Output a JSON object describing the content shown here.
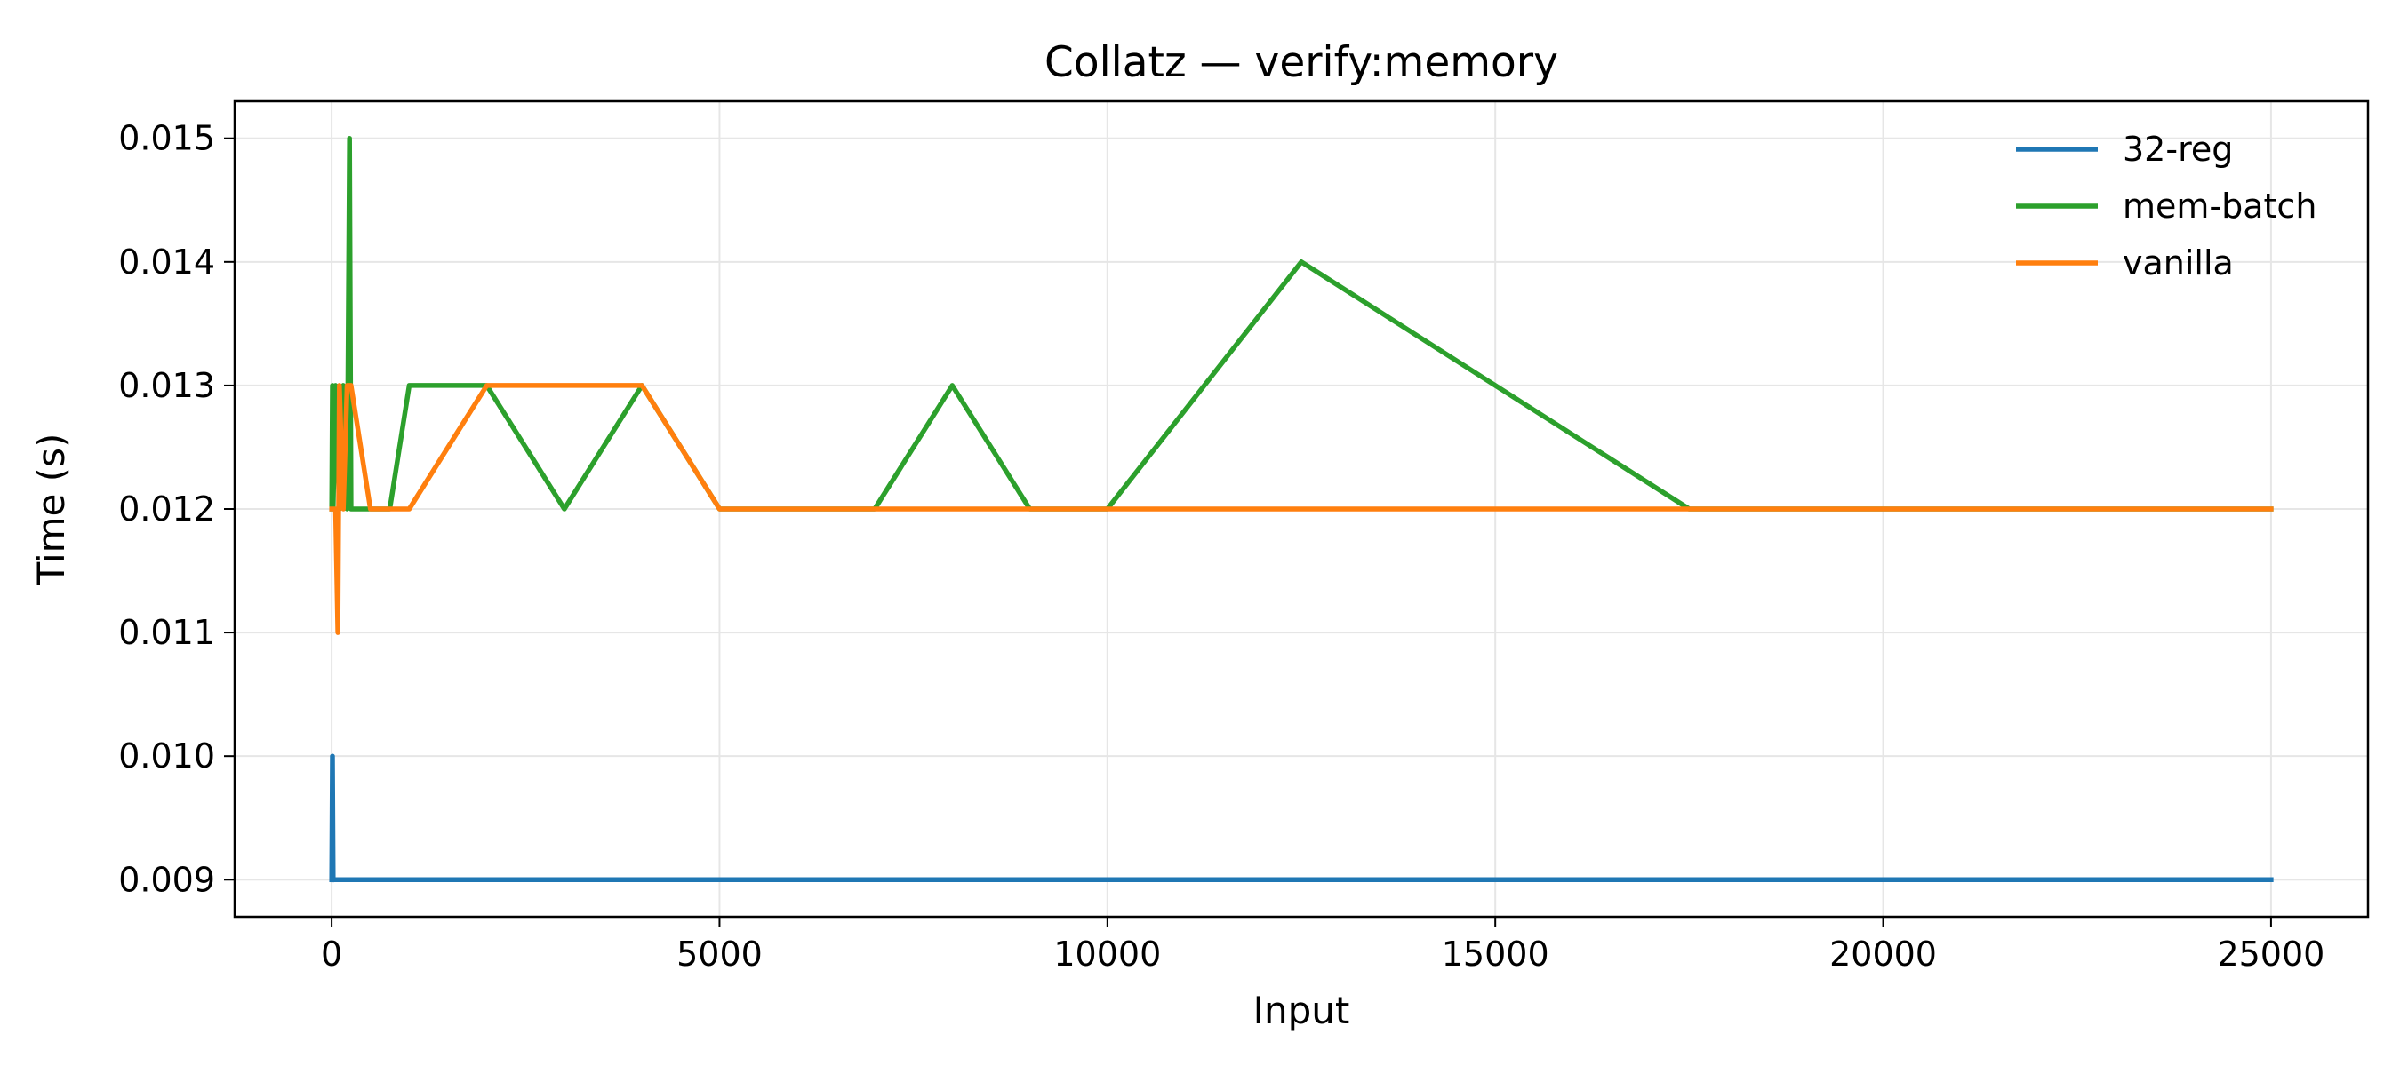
{
  "chart_data": {
    "type": "line",
    "title": "Collatz — verify:memory",
    "xlabel": "Input",
    "ylabel": "Time (s)",
    "xlim": [
      -1250,
      26250
    ],
    "ylim": [
      0.0087,
      0.0153
    ],
    "xticks": [
      0,
      5000,
      10000,
      15000,
      20000,
      25000
    ],
    "xtick_labels": [
      "0",
      "5000",
      "10000",
      "15000",
      "20000",
      "25000"
    ],
    "yticks": [
      0.009,
      0.01,
      0.011,
      0.012,
      0.013,
      0.014,
      0.015
    ],
    "ytick_labels": [
      "0.009",
      "0.010",
      "0.011",
      "0.012",
      "0.013",
      "0.014",
      "0.015"
    ],
    "grid": true,
    "legend_position": "top-right",
    "series": [
      {
        "name": "32-reg",
        "color": "#1f77b4",
        "points": [
          [
            1,
            0.009
          ],
          [
            10,
            0.01
          ],
          [
            20,
            0.009
          ],
          [
            50,
            0.009
          ],
          [
            100,
            0.009
          ],
          [
            200,
            0.009
          ],
          [
            500,
            0.009
          ],
          [
            1000,
            0.009
          ],
          [
            2000,
            0.009
          ],
          [
            5000,
            0.009
          ],
          [
            10000,
            0.009
          ],
          [
            25000,
            0.009
          ]
        ]
      },
      {
        "name": "mem-batch",
        "color": "#2ca02c",
        "points": [
          [
            1,
            0.012
          ],
          [
            10,
            0.013
          ],
          [
            20,
            0.012
          ],
          [
            50,
            0.013
          ],
          [
            100,
            0.012
          ],
          [
            150,
            0.013
          ],
          [
            200,
            0.012
          ],
          [
            230,
            0.015
          ],
          [
            250,
            0.012
          ],
          [
            500,
            0.012
          ],
          [
            750,
            0.012
          ],
          [
            1000,
            0.013
          ],
          [
            2000,
            0.013
          ],
          [
            3000,
            0.012
          ],
          [
            4000,
            0.013
          ],
          [
            5000,
            0.012
          ],
          [
            7000,
            0.012
          ],
          [
            8000,
            0.013
          ],
          [
            9000,
            0.012
          ],
          [
            10000,
            0.012
          ],
          [
            12500,
            0.014
          ],
          [
            17500,
            0.012
          ],
          [
            25000,
            0.012
          ]
        ]
      },
      {
        "name": "vanilla",
        "color": "#ff7f0e",
        "points": [
          [
            1,
            0.012
          ],
          [
            50,
            0.012
          ],
          [
            80,
            0.011
          ],
          [
            100,
            0.013
          ],
          [
            150,
            0.012
          ],
          [
            200,
            0.013
          ],
          [
            250,
            0.013
          ],
          [
            500,
            0.012
          ],
          [
            1000,
            0.012
          ],
          [
            2000,
            0.013
          ],
          [
            4000,
            0.013
          ],
          [
            5000,
            0.012
          ],
          [
            25000,
            0.012
          ]
        ]
      }
    ]
  }
}
